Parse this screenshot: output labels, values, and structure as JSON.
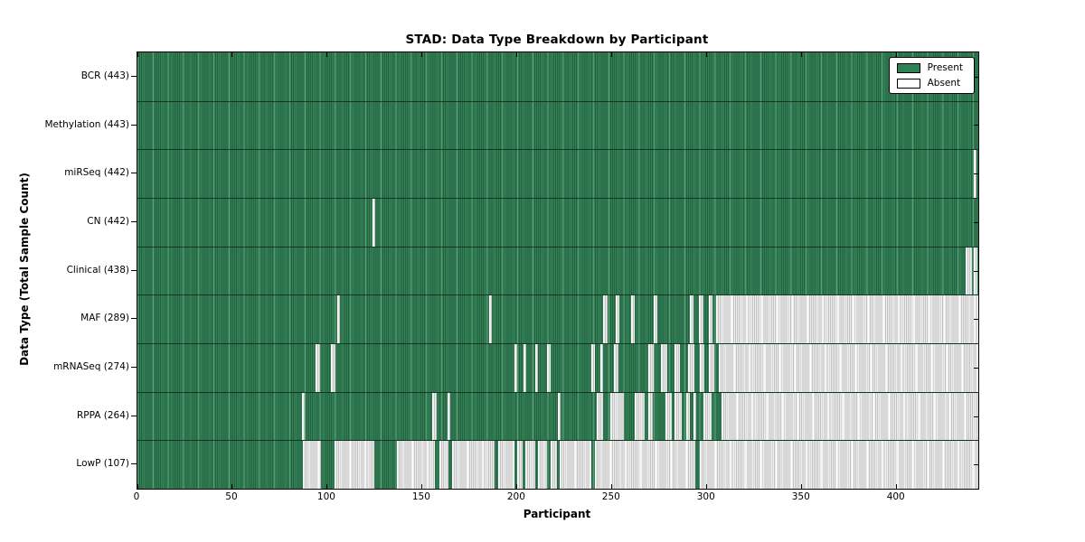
{
  "colors": {
    "present": "#2e8154",
    "present_stripe_light": "#82c3a0",
    "absent": "#ffffff",
    "absent_stripe": "#c2c2c2",
    "axis": "#000000"
  },
  "chart_data": {
    "type": "heatmap",
    "title": "STAD: Data Type Breakdown by Participant",
    "xlabel": "Participant",
    "ylabel": "Data Type (Total Sample Count)",
    "x_range": [
      0,
      443
    ],
    "x_ticks": [
      0,
      50,
      100,
      150,
      200,
      250,
      300,
      350,
      400
    ],
    "grid": false,
    "legend_position": "upper right",
    "legend_items": [
      {
        "label": "Present",
        "type": "present"
      },
      {
        "label": "Absent",
        "type": "absent"
      }
    ],
    "value_encoding": "green segment = data present for participant, white segment = data absent",
    "rows": [
      {
        "data_type": "BCR",
        "count": 443,
        "label": "BCR (443)",
        "absent_segments": []
      },
      {
        "data_type": "Methylation",
        "count": 443,
        "label": "Methylation (443)",
        "absent_segments": []
      },
      {
        "data_type": "miRSeq",
        "count": 442,
        "label": "miRSeq (442)",
        "absent_segments": [
          [
            440.5,
            442
          ]
        ]
      },
      {
        "data_type": "CN",
        "count": 442,
        "label": "CN (442)",
        "absent_segments": [
          [
            124,
            125.5
          ]
        ]
      },
      {
        "data_type": "Clinical",
        "count": 438,
        "label": "Clinical (438)",
        "absent_segments": [
          [
            436.5,
            439.5
          ],
          [
            440.5,
            442.5
          ]
        ]
      },
      {
        "data_type": "MAF",
        "count": 289,
        "label": "MAF (289)",
        "absent_segments": [
          [
            105.5,
            106.5
          ],
          [
            185.5,
            186.5
          ],
          [
            245.5,
            247.5
          ],
          [
            252,
            254
          ],
          [
            260,
            262
          ],
          [
            272,
            274
          ],
          [
            291,
            293
          ],
          [
            296,
            298
          ],
          [
            301,
            303
          ],
          [
            305,
            443
          ]
        ]
      },
      {
        "data_type": "mRNASeq",
        "count": 274,
        "label": "mRNASeq (274)",
        "absent_segments": [
          [
            94,
            96
          ],
          [
            102,
            104.5
          ],
          [
            198.5,
            200
          ],
          [
            203.5,
            205
          ],
          [
            209.5,
            211
          ],
          [
            216,
            217.5
          ],
          [
            239,
            241
          ],
          [
            244,
            245.5
          ],
          [
            251,
            253.5
          ],
          [
            269,
            272
          ],
          [
            276,
            279
          ],
          [
            283,
            286
          ],
          [
            290,
            293.5
          ],
          [
            296.5,
            298.5
          ],
          [
            301,
            304
          ],
          [
            306.5,
            443
          ]
        ]
      },
      {
        "data_type": "RPPA",
        "count": 264,
        "label": "RPPA (264)",
        "absent_segments": [
          [
            86.5,
            88
          ],
          [
            155.5,
            157.5
          ],
          [
            163.5,
            165
          ],
          [
            221.5,
            223
          ],
          [
            242,
            245.5
          ],
          [
            249,
            256.5
          ],
          [
            262,
            267
          ],
          [
            269,
            271.5
          ],
          [
            278,
            281.5
          ],
          [
            283,
            287
          ],
          [
            289,
            291
          ],
          [
            293,
            294.5
          ],
          [
            298,
            302.5
          ],
          [
            307.5,
            443
          ]
        ]
      },
      {
        "data_type": "LowP",
        "count": 107,
        "label": "LowP (107)",
        "absent_segments": [
          [
            87,
            96.5
          ],
          [
            104,
            125
          ],
          [
            136.5,
            156.5
          ],
          [
            159,
            164
          ],
          [
            166,
            188
          ],
          [
            190,
            198.5
          ],
          [
            200,
            203
          ],
          [
            204.5,
            209.5
          ],
          [
            211,
            216
          ],
          [
            217.5,
            221
          ],
          [
            222.5,
            239
          ],
          [
            241,
            294
          ],
          [
            296.5,
            443
          ]
        ]
      }
    ]
  }
}
